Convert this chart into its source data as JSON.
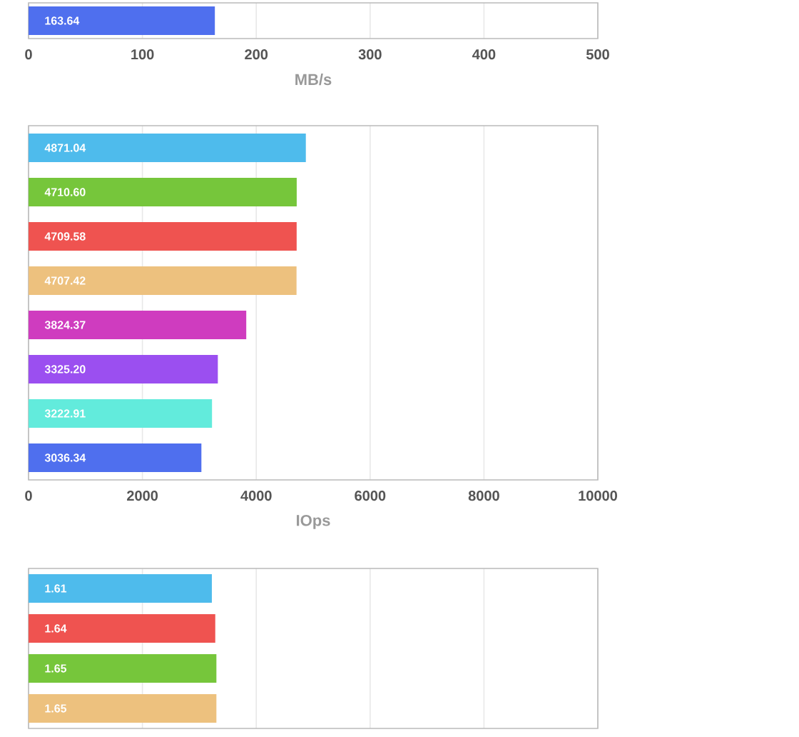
{
  "chart_data": [
    {
      "type": "bar",
      "orientation": "horizontal",
      "categories": [
        null
      ],
      "values": [
        163.64
      ],
      "value_labels": [
        "163.64"
      ],
      "colors": [
        "#4f6fee"
      ],
      "xlim": [
        0,
        500
      ],
      "xticks": [
        0,
        100,
        200,
        300,
        400,
        500
      ],
      "xlabel": "MB/s",
      "grid": "x"
    },
    {
      "type": "bar",
      "orientation": "horizontal",
      "categories": [
        null,
        null,
        null,
        null,
        null,
        null,
        null,
        null
      ],
      "values": [
        4871.04,
        4710.6,
        4709.58,
        4707.42,
        3824.37,
        3325.2,
        3222.91,
        3036.34
      ],
      "value_labels": [
        "4871.04",
        "4710.60",
        "4709.58",
        "4707.42",
        "3824.37",
        "3325.20",
        "3222.91",
        "3036.34"
      ],
      "colors": [
        "#4ebbec",
        "#76c63b",
        "#ef5350",
        "#edc17e",
        "#cf3cbf",
        "#9b4ff0",
        "#62ebdc",
        "#4f6fee"
      ],
      "xlim": [
        0,
        10000
      ],
      "xticks": [
        0,
        2000,
        4000,
        6000,
        8000,
        10000
      ],
      "xlabel": "IOps",
      "grid": "x"
    },
    {
      "type": "bar",
      "orientation": "horizontal",
      "categories": [
        null,
        null,
        null,
        null
      ],
      "values": [
        1.61,
        1.64,
        1.65,
        1.65
      ],
      "value_labels": [
        "1.61",
        "1.64",
        "1.65",
        "1.65"
      ],
      "colors": [
        "#4ebbec",
        "#ef5350",
        "#76c63b",
        "#edc17e"
      ],
      "xlim": [
        0,
        5
      ],
      "xticks": [
        {
          "value": 0,
          "label": null
        },
        {
          "value": 1,
          "label": null
        },
        {
          "value": 2,
          "label": null
        },
        {
          "value": 3,
          "label": null
        },
        {
          "value": 4,
          "label": null
        },
        {
          "value": 5,
          "label": null
        }
      ],
      "grid": "x"
    }
  ]
}
